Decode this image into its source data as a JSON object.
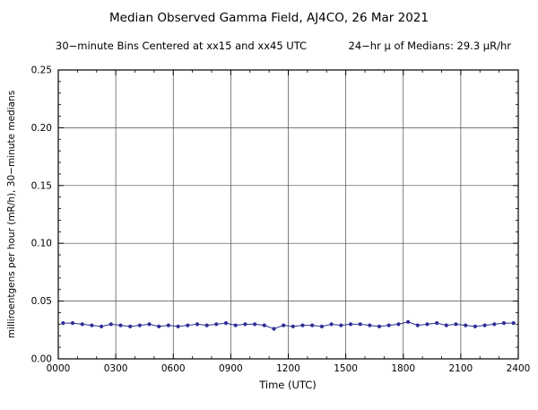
{
  "title": "Median Observed Gamma Field, AJ4CO, 26 Mar 2021",
  "subtitle_left": "30−minute Bins Centered at xx15 and xx45 UTC",
  "subtitle_right": "24−hr μ of Medians: 29.3 μR/hr",
  "chart_data": {
    "type": "line",
    "title": "Median Observed Gamma Field, AJ4CO, 26 Mar 2021",
    "subtitle": "30−minute Bins Centered at xx15 and xx45 UTC      24−hr μ of Medians: 29.3 μR/hr",
    "xlabel": "Time (UTC)",
    "ylabel": "milliroentgens per hour (mR/h), 30−minute medians",
    "xlim": [
      0,
      24
    ],
    "ylim": [
      0,
      0.25
    ],
    "x_ticks": [
      0,
      3,
      6,
      9,
      12,
      15,
      18,
      21,
      24
    ],
    "x_tick_labels": [
      "0000",
      "0300",
      "0600",
      "0900",
      "1200",
      "1500",
      "1800",
      "2100",
      "2400"
    ],
    "x_minor_step": 1,
    "y_ticks": [
      0.0,
      0.05,
      0.1,
      0.15,
      0.2,
      0.25
    ],
    "y_tick_labels": [
      "0.00",
      "0.05",
      "0.10",
      "0.15",
      "0.20",
      "0.25"
    ],
    "y_minor_step": 0.01,
    "grid": true,
    "legend": "none",
    "line_color": "#2f2f96",
    "marker": "circle",
    "mean_24hr_uR_per_hr": 29.3,
    "x": [
      0.25,
      0.75,
      1.25,
      1.75,
      2.25,
      2.75,
      3.25,
      3.75,
      4.25,
      4.75,
      5.25,
      5.75,
      6.25,
      6.75,
      7.25,
      7.75,
      8.25,
      8.75,
      9.25,
      9.75,
      10.25,
      10.75,
      11.25,
      11.75,
      12.25,
      12.75,
      13.25,
      13.75,
      14.25,
      14.75,
      15.25,
      15.75,
      16.25,
      16.75,
      17.25,
      17.75,
      18.25,
      18.75,
      19.25,
      19.75,
      20.25,
      20.75,
      21.25,
      21.75,
      22.25,
      22.75,
      23.25,
      23.75
    ],
    "y": [
      0.031,
      0.031,
      0.03,
      0.029,
      0.028,
      0.03,
      0.029,
      0.028,
      0.029,
      0.03,
      0.028,
      0.029,
      0.028,
      0.029,
      0.03,
      0.029,
      0.03,
      0.031,
      0.029,
      0.03,
      0.03,
      0.029,
      0.026,
      0.029,
      0.028,
      0.029,
      0.029,
      0.028,
      0.03,
      0.029,
      0.03,
      0.03,
      0.029,
      0.028,
      0.029,
      0.03,
      0.032,
      0.029,
      0.03,
      0.031,
      0.029,
      0.03,
      0.029,
      0.028,
      0.029,
      0.03,
      0.031,
      0.031
    ]
  }
}
